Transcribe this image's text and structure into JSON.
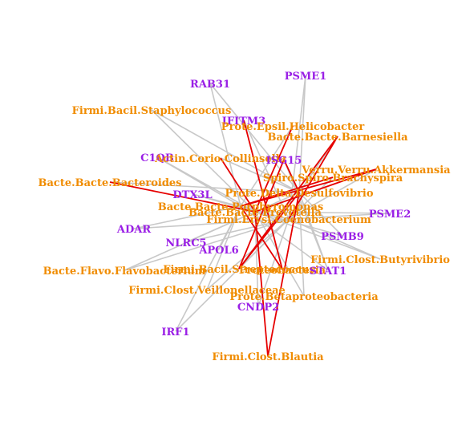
{
  "colors": {
    "gene": "#9a1fe6",
    "bacteria": "#f08c00",
    "edge_default": "#c8c8c8",
    "edge_highlight": "#e60000"
  },
  "nodes": [
    {
      "id": "PSME1",
      "label": "PSME1",
      "kind": "gene"
    },
    {
      "id": "RAB31",
      "label": "RAB31",
      "kind": "gene"
    },
    {
      "id": "staph",
      "label": "Firmi.Bacil.Staphylococcus",
      "kind": "bacteria"
    },
    {
      "id": "IFITM3",
      "label": "IFITM3",
      "kind": "gene"
    },
    {
      "id": "helico",
      "label": "Prote.Epsil.Helicobacter",
      "kind": "bacteria"
    },
    {
      "id": "barnes",
      "label": "Bacte.Bacte.Barnesiella",
      "kind": "bacteria"
    },
    {
      "id": "C1QB",
      "label": "C1QB",
      "kind": "gene"
    },
    {
      "id": "collins",
      "label": "Actin.Corio.Collinsella",
      "kind": "bacteria"
    },
    {
      "id": "ISG",
      "label": "ISG15",
      "kind": "gene"
    },
    {
      "id": "akker",
      "label": "Verru.Verru.Akkermansia",
      "kind": "bacteria"
    },
    {
      "id": "brachy",
      "label": "Spiro.Spiro.Brachyspira",
      "kind": "bacteria"
    },
    {
      "id": "bacteroides",
      "label": "Bacte.Bacte.Bacteroides",
      "kind": "bacteria"
    },
    {
      "id": "DTX3L",
      "label": "DTX3L",
      "kind": "gene"
    },
    {
      "id": "desulfo",
      "label": "Prote.Delta.Desulfovibrio",
      "kind": "bacteria"
    },
    {
      "id": "porphyro",
      "label": "Bacte.Bacte.Porphyromonas",
      "kind": "bacteria"
    },
    {
      "id": "prevot",
      "label": "Bacte.Bacte.Prevotella",
      "kind": "bacteria"
    },
    {
      "id": "PSME2",
      "label": "PSME2",
      "kind": "gene"
    },
    {
      "id": "coeno",
      "label": "Firmi.Erysi.Coenobacterium",
      "kind": "bacteria"
    },
    {
      "id": "ADAR",
      "label": "ADAR",
      "kind": "gene"
    },
    {
      "id": "PSMB9",
      "label": "PSMB9",
      "kind": "gene"
    },
    {
      "id": "NLRC5",
      "label": "NLRC5",
      "kind": "gene"
    },
    {
      "id": "APOL6",
      "label": "APOL6",
      "kind": "gene"
    },
    {
      "id": "butyri",
      "label": "Firmi.Clost.Butyrivibrio",
      "kind": "bacteria"
    },
    {
      "id": "flavo",
      "label": "Bacte.Flavo.Flavobacterium",
      "kind": "bacteria"
    },
    {
      "id": "strepto",
      "label": "Firmi.Bacil.Streptococcus",
      "kind": "bacteria"
    },
    {
      "id": "proteo",
      "label": "Proteobacteria",
      "kind": "bacteria"
    },
    {
      "id": "STAT1",
      "label": "STAT1",
      "kind": "gene"
    },
    {
      "id": "veill",
      "label": "Firmi.Clost.Veillonellaceae",
      "kind": "bacteria"
    },
    {
      "id": "betapro",
      "label": "Prote.Betaproteobacteria",
      "kind": "bacteria"
    },
    {
      "id": "CNDP2",
      "label": "CNDP2",
      "kind": "gene"
    },
    {
      "id": "IRF1",
      "label": "IRF1",
      "kind": "gene"
    },
    {
      "id": "blautia",
      "label": "Firmi.Clost.Blautia",
      "kind": "bacteria"
    }
  ],
  "edges": [
    {
      "source": "PSME1",
      "target": "desulfo",
      "highlight": false
    },
    {
      "source": "PSME1",
      "target": "coeno",
      "highlight": false
    },
    {
      "source": "RAB31",
      "target": "desulfo",
      "highlight": false
    },
    {
      "source": "RAB31",
      "target": "porphyro",
      "highlight": false
    },
    {
      "source": "staph",
      "target": "desulfo",
      "highlight": false
    },
    {
      "source": "staph",
      "target": "prevot",
      "highlight": false
    },
    {
      "source": "IFITM3",
      "target": "coeno",
      "highlight": false
    },
    {
      "source": "IFITM3",
      "target": "proteo",
      "highlight": true
    },
    {
      "source": "helico",
      "target": "porphyro",
      "highlight": false
    },
    {
      "source": "helico",
      "target": "prevot",
      "highlight": true
    },
    {
      "source": "barnes",
      "target": "desulfo",
      "highlight": false
    },
    {
      "source": "barnes",
      "target": "strepto",
      "highlight": true
    },
    {
      "source": "barnes",
      "target": "coeno",
      "highlight": true
    },
    {
      "source": "C1QB",
      "target": "porphyro",
      "highlight": false
    },
    {
      "source": "C1QB",
      "target": "prevot",
      "highlight": false
    },
    {
      "source": "collins",
      "target": "desulfo",
      "highlight": false
    },
    {
      "source": "collins",
      "target": "prevot",
      "highlight": true
    },
    {
      "source": "ISG",
      "target": "desulfo",
      "highlight": true
    },
    {
      "source": "ISG",
      "target": "strepto",
      "highlight": true
    },
    {
      "source": "ISG",
      "target": "STAT1",
      "highlight": false
    },
    {
      "source": "akker",
      "target": "prevot",
      "highlight": true
    },
    {
      "source": "akker",
      "target": "porphyro",
      "highlight": true
    },
    {
      "source": "akker",
      "target": "coeno",
      "highlight": false
    },
    {
      "source": "brachy",
      "target": "porphyro",
      "highlight": true
    },
    {
      "source": "brachy",
      "target": "coeno",
      "highlight": false
    },
    {
      "source": "bacteroides",
      "target": "prevot",
      "highlight": true
    },
    {
      "source": "bacteroides",
      "target": "desulfo",
      "highlight": false
    },
    {
      "source": "DTX3L",
      "target": "prevot",
      "highlight": false
    },
    {
      "source": "DTX3L",
      "target": "coeno",
      "highlight": false
    },
    {
      "source": "desulfo",
      "target": "strepto",
      "highlight": true
    },
    {
      "source": "desulfo",
      "target": "PSMB9",
      "highlight": false
    },
    {
      "source": "porphyro",
      "target": "STAT1",
      "highlight": false
    },
    {
      "source": "porphyro",
      "target": "proteo",
      "highlight": true
    },
    {
      "source": "prevot",
      "target": "PSME2",
      "highlight": false
    },
    {
      "source": "prevot",
      "target": "betapro",
      "highlight": false
    },
    {
      "source": "coeno",
      "target": "PSME2",
      "highlight": false
    },
    {
      "source": "coeno",
      "target": "butyri",
      "highlight": false
    },
    {
      "source": "ADAR",
      "target": "porphyro",
      "highlight": false
    },
    {
      "source": "ADAR",
      "target": "coeno",
      "highlight": false
    },
    {
      "source": "PSMB9",
      "target": "prevot",
      "highlight": false
    },
    {
      "source": "NLRC5",
      "target": "desulfo",
      "highlight": false
    },
    {
      "source": "NLRC5",
      "target": "coeno",
      "highlight": false
    },
    {
      "source": "APOL6",
      "target": "porphyro",
      "highlight": false
    },
    {
      "source": "butyri",
      "target": "prevot",
      "highlight": false
    },
    {
      "source": "flavo",
      "target": "prevot",
      "highlight": false
    },
    {
      "source": "flavo",
      "target": "coeno",
      "highlight": false
    },
    {
      "source": "strepto",
      "target": "coeno",
      "highlight": false
    },
    {
      "source": "STAT1",
      "target": "desulfo",
      "highlight": false
    },
    {
      "source": "veill",
      "target": "porphyro",
      "highlight": false
    },
    {
      "source": "veill",
      "target": "coeno",
      "highlight": false
    },
    {
      "source": "betapro",
      "target": "desulfo",
      "highlight": false
    },
    {
      "source": "CNDP2",
      "target": "coeno",
      "highlight": false
    },
    {
      "source": "CNDP2",
      "target": "prevot",
      "highlight": false
    },
    {
      "source": "IRF1",
      "target": "coeno",
      "highlight": false
    },
    {
      "source": "IRF1",
      "target": "porphyro",
      "highlight": false
    },
    {
      "source": "blautia",
      "target": "desulfo",
      "highlight": true
    },
    {
      "source": "blautia",
      "target": "prevot",
      "highlight": true
    }
  ]
}
